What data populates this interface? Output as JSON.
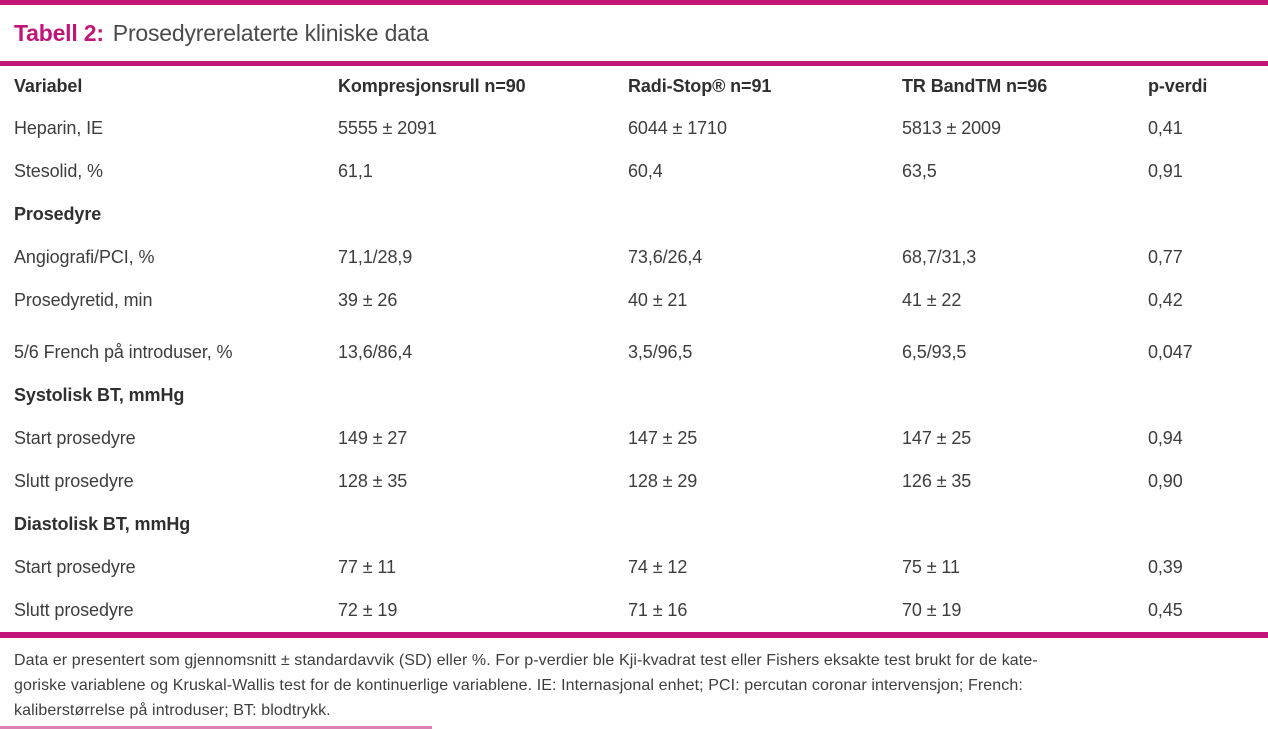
{
  "colors": {
    "accent": "#c11578",
    "text": "#3d3d3d"
  },
  "title": {
    "label": "Tabell 2:",
    "text": "Prosedyrerelaterte kliniske data"
  },
  "table": {
    "columns": [
      "Variabel",
      "Kompresjonsrull n=90",
      "Radi-Stop® n=91",
      "TR BandTM n=96",
      "p-verdi"
    ],
    "rows": [
      {
        "label": "Heparin, IE",
        "values": [
          "5555 ± 2091",
          "6044 ± 1710",
          "5813 ± 2009",
          "0,41"
        ]
      },
      {
        "label": "Stesolid, %",
        "values": [
          "61,1",
          "60,4",
          "63,5",
          "0,91"
        ]
      },
      {
        "label": "Prosedyre",
        "values": [
          "",
          "",
          "",
          ""
        ]
      },
      {
        "label": "Angiografi/PCI, %",
        "values": [
          "71,1/28,9",
          "73,6/26,4",
          "68,7/31,3",
          "0,77"
        ]
      },
      {
        "label": "Prosedyretid, min",
        "values": [
          "39 ± 26",
          "40 ± 21",
          "41 ± 22",
          "0,42"
        ]
      },
      {
        "label": "5/6 French på introduser, %",
        "values": [
          "13,6/86,4",
          "3,5/96,5",
          "6,5/93,5",
          "0,047"
        ]
      },
      {
        "label": "Systolisk BT, mmHg",
        "values": [
          "",
          "",
          "",
          ""
        ]
      },
      {
        "label": "Start prosedyre",
        "values": [
          "149 ± 27",
          "147 ± 25",
          "147 ± 25",
          "0,94"
        ]
      },
      {
        "label": "Slutt prosedyre",
        "values": [
          "128 ± 35",
          "128 ± 29",
          "126 ± 35",
          "0,90"
        ]
      },
      {
        "label": "Diastolisk BT, mmHg",
        "values": [
          "",
          "",
          "",
          ""
        ]
      },
      {
        "label": "Start prosedyre",
        "values": [
          "77 ± 11",
          "74 ± 12",
          "75 ± 11",
          "0,39"
        ]
      },
      {
        "label": "Slutt prosedyre",
        "values": [
          "72 ± 19",
          "71 ± 16",
          "70 ± 19",
          "0,45"
        ]
      }
    ]
  },
  "footnote_lines": [
    "Data er presentert som gjennomsnitt ± standardavvik (SD) eller %. For p-verdier ble Kji-kvadrat test eller Fishers eksakte test brukt for de kate-",
    "goriske variablene og Kruskal-Wallis test for de kontinuerlige variablene. IE: Internasjonal enhet; PCI: percutan coronar intervensjon; French:",
    "kaliberstørrelse på introduser; BT: blodtrykk."
  ]
}
